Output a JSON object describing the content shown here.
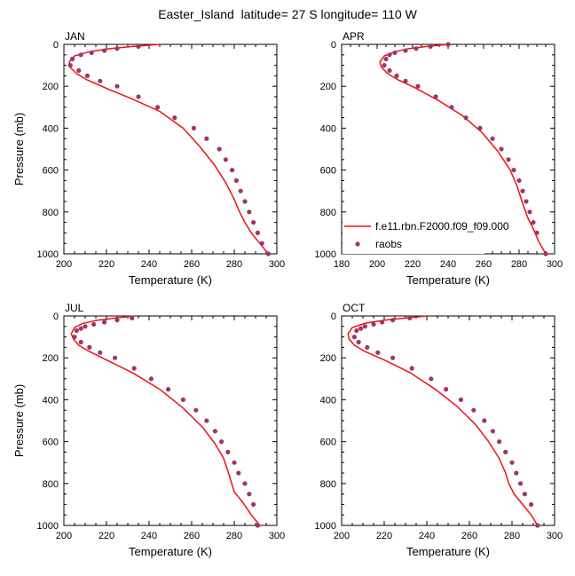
{
  "title": "Easter_Island  latitude= 27 S longitude= 110 W",
  "colors": {
    "model": "#ee1111",
    "obs": "#a0346c",
    "axis": "#000000"
  },
  "legend": {
    "placement": "bottom-right of APR panel",
    "entries": [
      {
        "label": "f.e11.rbn.F2000.f09_f09.000",
        "style": "line",
        "color": "#ee1111"
      },
      {
        "label": "raobs",
        "style": "marker",
        "color": "#a0346c"
      }
    ]
  },
  "chart_data": [
    {
      "type": "line",
      "panel_label": "JAN",
      "xlabel": "Temperature (K)",
      "ylabel": "Pressure (mb)",
      "xlim": [
        200,
        300
      ],
      "ylim": [
        1000,
        0
      ],
      "xticks": [
        200,
        220,
        240,
        260,
        280,
        300
      ],
      "yticks": [
        0,
        200,
        400,
        600,
        800,
        1000
      ],
      "series": [
        {
          "name": "f.e11.rbn.F2000.f09_f09.000",
          "style": "line",
          "x": [
            245,
            232,
            222,
            212,
            205,
            202.5,
            203,
            206,
            211,
            220,
            232,
            245,
            256,
            264,
            271,
            276,
            280,
            282.5,
            285,
            288,
            292,
            296
          ],
          "y": [
            0,
            10,
            20,
            35,
            55,
            85,
            110,
            140,
            170,
            210,
            260,
            320,
            400,
            490,
            580,
            660,
            740,
            800,
            850,
            900,
            950,
            1000
          ]
        },
        {
          "name": "raobs",
          "style": "marker",
          "x": [
            235,
            225,
            219,
            213,
            208,
            204,
            203,
            207,
            211,
            217,
            225,
            235,
            244,
            252,
            261,
            267,
            273,
            276,
            279,
            281,
            283,
            285,
            287,
            289,
            291,
            293,
            296
          ],
          "y": [
            10,
            20,
            30,
            40,
            50,
            70,
            100,
            125,
            150,
            175,
            200,
            250,
            300,
            350,
            400,
            450,
            500,
            550,
            600,
            650,
            700,
            750,
            800,
            850,
            900,
            950,
            1000
          ]
        }
      ]
    },
    {
      "type": "line",
      "panel_label": "APR",
      "xlabel": "Temperature (K)",
      "ylabel": "",
      "xlim": [
        180,
        300
      ],
      "ylim": [
        1000,
        0
      ],
      "xticks": [
        180,
        200,
        220,
        240,
        260,
        280,
        300
      ],
      "yticks": [
        0,
        200,
        400,
        600,
        800,
        1000
      ],
      "series": [
        {
          "name": "f.e11.rbn.F2000.f09_f09.000",
          "style": "line",
          "x": [
            240,
            228,
            218,
            210,
            204,
            201.5,
            202.5,
            206,
            212,
            222,
            235,
            248,
            259,
            268,
            275,
            279,
            282,
            285,
            288,
            291,
            295
          ],
          "y": [
            0,
            10,
            20,
            35,
            55,
            85,
            110,
            140,
            170,
            210,
            270,
            340,
            420,
            510,
            600,
            680,
            760,
            830,
            880,
            940,
            1000
          ]
        },
        {
          "name": "raobs",
          "style": "marker",
          "x": [
            240,
            230,
            222,
            216,
            210,
            207,
            205,
            204,
            207,
            211,
            216,
            223,
            233,
            242,
            250,
            258,
            265,
            270,
            274,
            277,
            280,
            282,
            284,
            286,
            288,
            290,
            295
          ],
          "y": [
            0,
            10,
            20,
            30,
            40,
            50,
            70,
            100,
            125,
            150,
            175,
            200,
            250,
            300,
            350,
            400,
            450,
            500,
            550,
            600,
            650,
            700,
            750,
            800,
            850,
            900,
            1000
          ]
        }
      ]
    },
    {
      "type": "line",
      "panel_label": "JUL",
      "xlabel": "Temperature (K)",
      "ylabel": "Pressure (mb)",
      "xlim": [
        200,
        300
      ],
      "ylim": [
        1000,
        0
      ],
      "xticks": [
        200,
        220,
        240,
        260,
        280,
        300
      ],
      "yticks": [
        0,
        200,
        400,
        600,
        800,
        1000
      ],
      "series": [
        {
          "name": "f.e11.rbn.F2000.f09_f09.000",
          "style": "line",
          "x": [
            233,
            224,
            216,
            209,
            205,
            203.5,
            204.5,
            207,
            212,
            220,
            232,
            245,
            256,
            265,
            271,
            275,
            277,
            278.5,
            280,
            284,
            288,
            292
          ],
          "y": [
            0,
            10,
            20,
            35,
            55,
            85,
            110,
            140,
            170,
            210,
            270,
            350,
            440,
            530,
            610,
            680,
            740,
            790,
            840,
            890,
            950,
            1000
          ]
        },
        {
          "name": "raobs",
          "style": "marker",
          "x": [
            232,
            225,
            219,
            214,
            210,
            208,
            206,
            205,
            208,
            212,
            217,
            224,
            233,
            241,
            249,
            256,
            262,
            267,
            271,
            274,
            277,
            280,
            282,
            285,
            287,
            289,
            291
          ],
          "y": [
            10,
            20,
            30,
            40,
            50,
            60,
            70,
            100,
            125,
            150,
            175,
            200,
            250,
            300,
            350,
            400,
            450,
            500,
            550,
            600,
            650,
            700,
            750,
            800,
            850,
            900,
            1000
          ]
        }
      ]
    },
    {
      "type": "line",
      "panel_label": "OCT",
      "xlabel": "Temperature (K)",
      "ylabel": "",
      "xlim": [
        200,
        300
      ],
      "ylim": [
        1000,
        0
      ],
      "xticks": [
        200,
        220,
        240,
        260,
        280,
        300
      ],
      "yticks": [
        0,
        200,
        400,
        600,
        800,
        1000
      ],
      "series": [
        {
          "name": "f.e11.rbn.F2000.f09_f09.000",
          "style": "line",
          "x": [
            240,
            230,
            220,
            211,
            205,
            203,
            203.5,
            206,
            211,
            220,
            232,
            244,
            254,
            263,
            269,
            274,
            277,
            278.5,
            281,
            285,
            289,
            292
          ],
          "y": [
            0,
            10,
            20,
            35,
            55,
            85,
            110,
            140,
            170,
            210,
            270,
            350,
            430,
            520,
            600,
            680,
            750,
            800,
            850,
            900,
            950,
            1000
          ]
        },
        {
          "name": "raobs",
          "style": "marker",
          "x": [
            232,
            224,
            219,
            215,
            211,
            209,
            207,
            206,
            208,
            212,
            217,
            224,
            233,
            242,
            249,
            256,
            262,
            267,
            271,
            274,
            277,
            280,
            282,
            284,
            286,
            289,
            292
          ],
          "y": [
            10,
            20,
            30,
            40,
            50,
            60,
            70,
            100,
            125,
            150,
            175,
            200,
            250,
            300,
            350,
            400,
            450,
            500,
            550,
            600,
            650,
            700,
            750,
            800,
            850,
            900,
            1000
          ]
        }
      ]
    }
  ]
}
